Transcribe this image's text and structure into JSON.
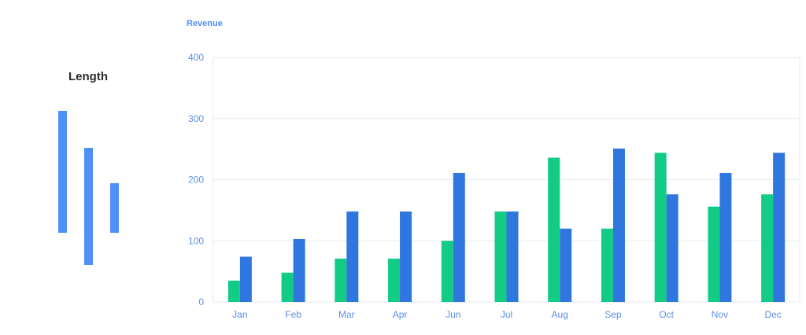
{
  "length_widget": {
    "title": "Length",
    "color": "#4f8ff7"
  },
  "chart_data": {
    "type": "bar",
    "title": "Revenue",
    "categories": [
      "Jan",
      "Feb",
      "Mar",
      "Apr",
      "Jun",
      "Jul",
      "Aug",
      "Sep",
      "Oct",
      "Nov",
      "Dec"
    ],
    "series": [
      {
        "color": "#12cc86",
        "values": [
          35,
          48,
          71,
          71,
          100,
          148,
          236,
          120,
          244,
          156,
          176
        ]
      },
      {
        "color": "#2f76df",
        "values": [
          74,
          103,
          148,
          148,
          211,
          148,
          120,
          251,
          176,
          211,
          244
        ]
      }
    ],
    "ylim": [
      0,
      400
    ],
    "yticks": [
      0,
      100,
      200,
      300,
      400
    ],
    "grid": true
  }
}
